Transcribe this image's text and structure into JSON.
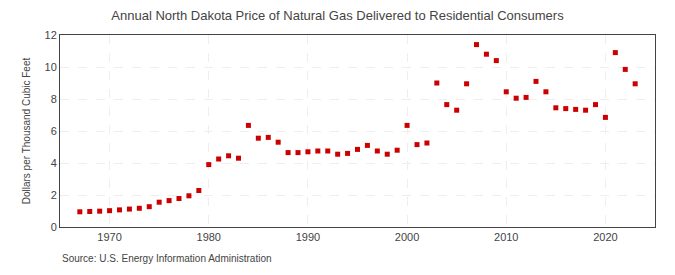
{
  "chart_data": {
    "type": "scatter",
    "title": "Annual North Dakota Price of Natural Gas Delivered to Residential Consumers",
    "y_label": "Dollars per Thousand Cubic Feet",
    "annotations": [
      "Source: U.S. Energy Information Administration"
    ],
    "color": "#cc0000",
    "marker": "square",
    "grid": true,
    "xlim": [
      1965,
      2025
    ],
    "xticks": [
      1970,
      1980,
      1990,
      2000,
      2010,
      2020
    ],
    "ylim": [
      0,
      12
    ],
    "yticks": [
      0,
      2,
      4,
      6,
      8,
      10,
      12
    ],
    "x": [
      1967,
      1968,
      1969,
      1970,
      1971,
      1972,
      1973,
      1974,
      1975,
      1976,
      1977,
      1978,
      1979,
      1980,
      1981,
      1982,
      1983,
      1984,
      1985,
      1986,
      1987,
      1988,
      1989,
      1990,
      1991,
      1992,
      1993,
      1994,
      1995,
      1996,
      1997,
      1998,
      1999,
      2000,
      2001,
      2002,
      2003,
      2004,
      2005,
      2006,
      2007,
      2008,
      2009,
      2010,
      2011,
      2012,
      2013,
      2014,
      2015,
      2016,
      2017,
      2018,
      2019,
      2020,
      2021,
      2022,
      2023
    ],
    "values": [
      0.95,
      0.97,
      0.99,
      1.02,
      1.07,
      1.12,
      1.17,
      1.27,
      1.55,
      1.65,
      1.78,
      1.95,
      2.28,
      3.9,
      4.25,
      4.45,
      4.3,
      6.35,
      5.55,
      5.6,
      5.3,
      4.65,
      4.65,
      4.7,
      4.75,
      4.75,
      4.55,
      4.6,
      4.85,
      5.1,
      4.75,
      4.55,
      4.8,
      6.35,
      5.15,
      5.25,
      9.0,
      7.65,
      7.3,
      8.95,
      11.4,
      10.8,
      10.4,
      8.45,
      8.05,
      8.1,
      9.1,
      8.45,
      7.45,
      7.4,
      7.35,
      7.3,
      7.65,
      6.85,
      10.9,
      9.85,
      8.95
    ]
  }
}
